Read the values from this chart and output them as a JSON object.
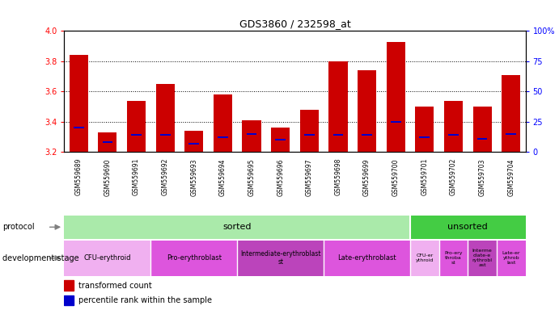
{
  "title": "GDS3860 / 232598_at",
  "samples": [
    "GSM559689",
    "GSM559690",
    "GSM559691",
    "GSM559692",
    "GSM559693",
    "GSM559694",
    "GSM559695",
    "GSM559696",
    "GSM559697",
    "GSM559698",
    "GSM559699",
    "GSM559700",
    "GSM559701",
    "GSM559702",
    "GSM559703",
    "GSM559704"
  ],
  "transformed_count": [
    3.84,
    3.33,
    3.54,
    3.65,
    3.34,
    3.58,
    3.41,
    3.36,
    3.48,
    3.8,
    3.74,
    3.93,
    3.5,
    3.54,
    3.5,
    3.71
  ],
  "percentile": [
    20,
    8,
    14,
    14,
    7,
    12,
    15,
    10,
    14,
    14,
    14,
    25,
    12,
    14,
    11,
    15
  ],
  "y_min": 3.2,
  "y_max": 4.0,
  "y_ticks_left": [
    3.2,
    3.4,
    3.6,
    3.8,
    4.0
  ],
  "y_ticks_right": [
    0,
    25,
    50,
    75,
    100
  ],
  "bar_color": "#cc0000",
  "percentile_color": "#0000cc",
  "protocol_sorted_color": "#aaeaaa",
  "protocol_unsorted_color": "#44cc44",
  "dev_colors": [
    "#f0a0f0",
    "#ee55ee",
    "#cc44cc",
    "#ee55ee",
    "#f0a0f0",
    "#ee55ee",
    "#cc44cc",
    "#ee55ee"
  ],
  "dev_labels_sorted": [
    "CFU-erythroid",
    "Pro-erythroblast",
    "Intermediate-erythroblast\nst",
    "Late-erythroblast"
  ],
  "dev_ranges_sorted": [
    [
      0,
      2
    ],
    [
      3,
      5
    ],
    [
      6,
      8
    ],
    [
      9,
      11
    ]
  ],
  "dev_labels_unsorted": [
    "CFU-er\nythroid",
    "Pro-ery\nthroba\nst",
    "Interme\ndiate-e\nrythrobl\nast",
    "Late-er\nythrob\nlast"
  ],
  "dev_ranges_unsorted": [
    [
      12,
      12
    ],
    [
      13,
      13
    ],
    [
      14,
      14
    ],
    [
      15,
      15
    ]
  ],
  "gray_bg": "#d0d0d0",
  "white_sep": "#ffffff"
}
